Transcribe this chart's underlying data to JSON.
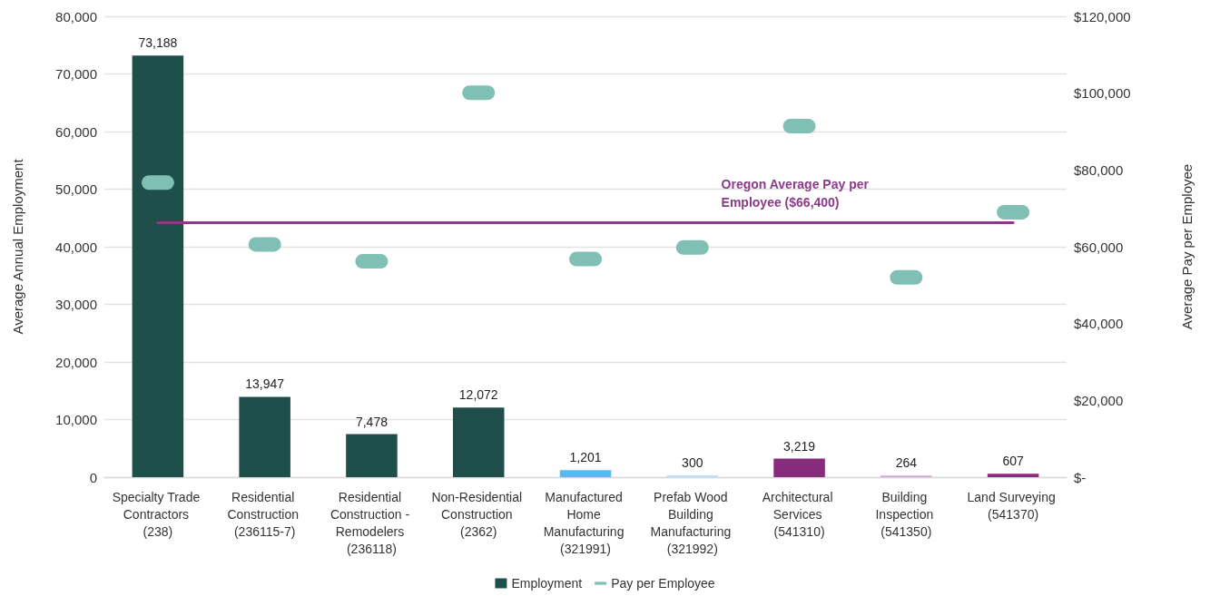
{
  "chart_data": {
    "type": "bar",
    "categories": [
      "Specialty Trade Contractors (238)",
      "Residential Construction (236115-7)",
      "Residential Construction - Remodelers (236118)",
      "Non-Residential Construction (2362)",
      "Manufactured Home Manufacturing (321991)",
      "Prefab Wood Building Manufacturing (321992)",
      "Architectural Services (541310)",
      "Building Inspection (541350)",
      "Land Surveying (541370)"
    ],
    "series": [
      {
        "name": "Employment",
        "type": "bar",
        "color": "#1e4f4b",
        "colors": [
          "#1e4f4b",
          "#1e4f4b",
          "#1e4f4b",
          "#1e4f4b",
          "#5bb8f2",
          "#bfdff6",
          "#862c7b",
          "#d3a9d0",
          "#862c7b"
        ],
        "values": [
          73188,
          13947,
          7478,
          12072,
          1201,
          300,
          3219,
          264,
          607
        ],
        "value_labels": [
          "73,188",
          "13,947",
          "7,478",
          "12,072",
          "1,201",
          "300",
          "3,219",
          "264",
          "607"
        ]
      },
      {
        "name": "Pay per Employee",
        "type": "scatter",
        "axis": "y2",
        "color": "#80bfb4",
        "values": [
          76700,
          60600,
          56200,
          100100,
          56800,
          59800,
          91400,
          52000,
          69000
        ]
      }
    ],
    "ylabel": "Average Annual Employment",
    "y2label": "Average Pay per Employee",
    "ylim": [
      0,
      80000
    ],
    "yticks": [
      {
        "value": 0,
        "label": "0"
      },
      {
        "value": 10000,
        "label": "10,000"
      },
      {
        "value": 20000,
        "label": "20,000"
      },
      {
        "value": 30000,
        "label": "30,000"
      },
      {
        "value": 40000,
        "label": "40,000"
      },
      {
        "value": 50000,
        "label": "50,000"
      },
      {
        "value": 60000,
        "label": "60,000"
      },
      {
        "value": 70000,
        "label": "70,000"
      },
      {
        "value": 80000,
        "label": "80,000"
      }
    ],
    "y2lim": [
      0,
      120000
    ],
    "y2ticks": [
      {
        "value": 0,
        "label": "$-"
      },
      {
        "value": 20000,
        "label": "$20,000"
      },
      {
        "value": 40000,
        "label": "$40,000"
      },
      {
        "value": 60000,
        "label": "$60,000"
      },
      {
        "value": 80000,
        "label": "$80,000"
      },
      {
        "value": 100000,
        "label": "$100,000"
      },
      {
        "value": 120000,
        "label": "$120,000"
      }
    ],
    "ref_lines": [
      {
        "axis": "y2",
        "value": 66400,
        "label": "Oregon Average Pay per Employee ($66,400)",
        "color": "#8b3a8a"
      }
    ],
    "grid": "y",
    "legend": "bottom"
  }
}
